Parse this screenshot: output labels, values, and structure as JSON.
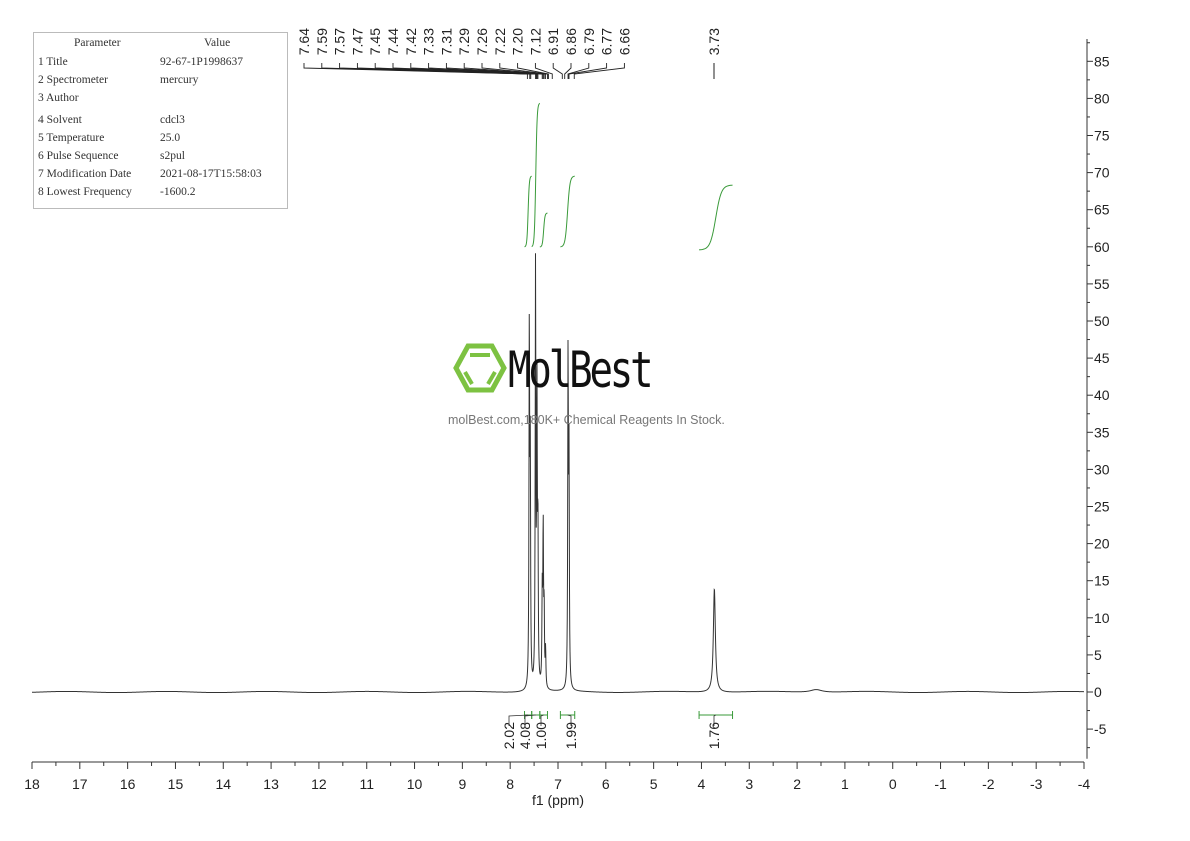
{
  "parameters": {
    "header": [
      "Parameter",
      "Value"
    ],
    "rows": [
      [
        "1 Title",
        "92-67-1P1998637"
      ],
      [
        "2 Spectrometer",
        "mercury"
      ],
      [
        "3 Author",
        ""
      ],
      [
        "4 Solvent",
        "cdcl3"
      ],
      [
        "5 Temperature",
        "25.0"
      ],
      [
        "6 Pulse Sequence",
        "s2pul"
      ],
      [
        "7 Modification Date",
        "2021-08-17T15:58:03"
      ],
      [
        "8 Lowest Frequency",
        "-1600.2"
      ]
    ]
  },
  "watermark": {
    "logo": "MolBest",
    "tagline": "molBest.com,180K+ Chemical Reagents In Stock.",
    "logo_color": "#7dc242"
  },
  "chart_data": {
    "type": "line",
    "title": "",
    "xlabel": "f1 (ppm)",
    "ylabel": "",
    "xlim": [
      18,
      -4
    ],
    "ylim": [
      -9,
      88
    ],
    "x_ticks": [
      18,
      17,
      16,
      15,
      14,
      13,
      12,
      11,
      10,
      9,
      8,
      7,
      6,
      5,
      4,
      3,
      2,
      1,
      0,
      -1,
      -2,
      -3,
      -4
    ],
    "y_ticks": [
      -5,
      0,
      5,
      10,
      15,
      20,
      25,
      30,
      35,
      40,
      45,
      50,
      55,
      60,
      65,
      70,
      75,
      80,
      85
    ],
    "grid": false,
    "line_color": "#333333",
    "integral_color": "#3a9a3a",
    "peaks": [
      {
        "ppm": 7.6,
        "intensity": 48
      },
      {
        "ppm": 7.58,
        "intensity": 30
      },
      {
        "ppm": 7.47,
        "intensity": 56
      },
      {
        "ppm": 7.44,
        "intensity": 38
      },
      {
        "ppm": 7.42,
        "intensity": 20
      },
      {
        "ppm": 7.33,
        "intensity": 12
      },
      {
        "ppm": 7.31,
        "intensity": 21
      },
      {
        "ppm": 7.29,
        "intensity": 10
      },
      {
        "ppm": 7.26,
        "intensity": 5
      },
      {
        "ppm": 6.79,
        "intensity": 44
      },
      {
        "ppm": 6.77,
        "intensity": 30
      },
      {
        "ppm": 3.73,
        "intensity": 14
      }
    ],
    "peak_labels": [
      "7.64",
      "7.59",
      "7.57",
      "7.47",
      "7.45",
      "7.44",
      "7.42",
      "7.33",
      "7.31",
      "7.29",
      "7.26",
      "7.22",
      "7.20",
      "7.12",
      "6.91",
      "6.86",
      "6.79",
      "6.77",
      "6.66",
      "3.73"
    ],
    "integrals": [
      {
        "from": 7.7,
        "to": 7.55,
        "value": "2.02"
      },
      {
        "from": 7.55,
        "to": 7.38,
        "value": "4.08"
      },
      {
        "from": 7.38,
        "to": 7.22,
        "value": "1.00"
      },
      {
        "from": 6.95,
        "to": 6.65,
        "value": "1.99"
      },
      {
        "from": 4.05,
        "to": 3.35,
        "value": "1.76"
      }
    ]
  }
}
